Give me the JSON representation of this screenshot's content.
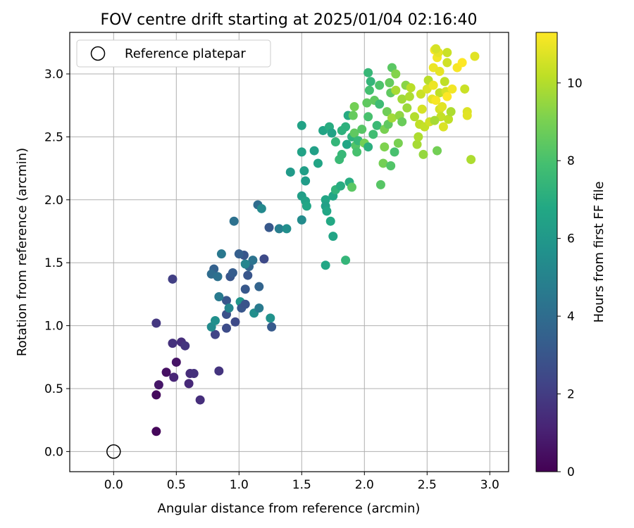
{
  "chart_data": {
    "type": "scatter",
    "title": "FOV centre drift starting at 2025/01/04 02:16:40",
    "xlabel": "Angular distance from reference (arcmin)",
    "ylabel": "Rotation from reference (arcmin)",
    "xlim": [
      -0.35,
      3.15
    ],
    "ylim": [
      -0.16,
      3.33
    ],
    "x_ticks": [
      "0.0",
      "0.5",
      "1.0",
      "1.5",
      "2.0",
      "2.5",
      "3.0"
    ],
    "y_ticks": [
      "0.0",
      "0.5",
      "1.0",
      "1.5",
      "2.0",
      "2.5",
      "3.0"
    ],
    "grid": true,
    "legend": {
      "position": "top-left",
      "entries": [
        "Reference platepar"
      ]
    },
    "reference_point": [
      0.0,
      0.0
    ],
    "colorbar": {
      "label": "Hours from first FF file",
      "min": 0,
      "max": 11.3,
      "ticks": [
        "0",
        "2",
        "4",
        "6",
        "8",
        "10"
      ],
      "colormap": "viridis"
    },
    "points": [
      [
        0.34,
        0.16,
        0.2
      ],
      [
        0.34,
        0.45,
        0.3
      ],
      [
        0.36,
        0.53,
        0.7
      ],
      [
        0.42,
        0.63,
        0.5
      ],
      [
        0.5,
        0.71,
        0.6
      ],
      [
        0.48,
        0.59,
        1.2
      ],
      [
        0.6,
        0.54,
        1.3
      ],
      [
        0.61,
        0.62,
        1.4
      ],
      [
        0.64,
        0.62,
        1.6
      ],
      [
        0.69,
        0.41,
        1.5
      ],
      [
        0.84,
        0.64,
        1.7
      ],
      [
        0.34,
        1.02,
        1.8
      ],
      [
        0.47,
        0.86,
        1.6
      ],
      [
        0.54,
        0.87,
        1.5
      ],
      [
        0.57,
        0.84,
        1.7
      ],
      [
        0.47,
        1.37,
        2.1
      ],
      [
        0.81,
        0.93,
        2.3
      ],
      [
        0.9,
        0.98,
        2.6
      ],
      [
        0.97,
        1.03,
        2.5
      ],
      [
        0.9,
        1.09,
        2.8
      ],
      [
        0.9,
        1.2,
        3.0
      ],
      [
        0.93,
        1.39,
        3.0
      ],
      [
        0.95,
        1.42,
        3.3
      ],
      [
        0.8,
        1.45,
        3.5
      ],
      [
        0.78,
        1.41,
        4.0
      ],
      [
        0.83,
        1.39,
        4.2
      ],
      [
        0.86,
        1.57,
        4.5
      ],
      [
        0.84,
        1.23,
        4.6
      ],
      [
        0.92,
        1.14,
        5.1
      ],
      [
        0.78,
        0.99,
        5.4
      ],
      [
        0.81,
        1.04,
        5.6
      ],
      [
        1.01,
        1.19,
        5.8
      ],
      [
        1.02,
        1.14,
        3.0
      ],
      [
        1.05,
        1.29,
        3.1
      ],
      [
        1.05,
        1.17,
        2.9
      ],
      [
        1.07,
        1.4,
        3.0
      ],
      [
        1.08,
        1.47,
        3.7
      ],
      [
        1.11,
        1.52,
        4.3
      ],
      [
        1.12,
        1.1,
        5.5
      ],
      [
        1.16,
        1.31,
        3.6
      ],
      [
        1.16,
        1.14,
        4.6
      ],
      [
        1.2,
        1.53,
        2.5
      ],
      [
        1.25,
        1.06,
        5.7
      ],
      [
        1.26,
        0.99,
        3.2
      ],
      [
        1.05,
        1.49,
        5.1
      ],
      [
        1.04,
        1.56,
        3.0
      ],
      [
        1.0,
        1.57,
        3.4
      ],
      [
        0.96,
        1.83,
        4.2
      ],
      [
        1.15,
        1.96,
        4.0
      ],
      [
        1.18,
        1.93,
        5.3
      ],
      [
        1.24,
        1.78,
        3.1
      ],
      [
        1.32,
        1.77,
        4.8
      ],
      [
        1.38,
        1.77,
        5.5
      ],
      [
        1.41,
        2.22,
        6.1
      ],
      [
        1.5,
        1.84,
        5.4
      ],
      [
        1.5,
        2.03,
        6.3
      ],
      [
        1.52,
        2.23,
        6.3
      ],
      [
        1.53,
        2.15,
        6.2
      ],
      [
        1.53,
        1.99,
        6.5
      ],
      [
        1.54,
        1.95,
        6.7
      ],
      [
        1.5,
        2.38,
        6.5
      ],
      [
        1.5,
        2.59,
        6.5
      ],
      [
        1.6,
        2.39,
        6.4
      ],
      [
        1.63,
        2.29,
        6.6
      ],
      [
        1.67,
        2.55,
        6.6
      ],
      [
        1.69,
        2.0,
        6.7
      ],
      [
        1.69,
        1.95,
        6.4
      ],
      [
        1.7,
        1.91,
        6.7
      ],
      [
        1.72,
        2.58,
        7.0
      ],
      [
        1.74,
        2.53,
        6.5
      ],
      [
        1.73,
        1.83,
        6.8
      ],
      [
        1.75,
        1.71,
        6.6
      ],
      [
        1.75,
        2.03,
        6.7
      ],
      [
        1.77,
        2.08,
        7.3
      ],
      [
        1.69,
        1.48,
        6.7
      ],
      [
        1.85,
        1.52,
        7.4
      ],
      [
        1.77,
        2.46,
        7.4
      ],
      [
        1.82,
        2.55,
        7.2
      ],
      [
        1.8,
        2.32,
        7.6
      ],
      [
        1.82,
        2.36,
        7.5
      ],
      [
        1.85,
        2.58,
        7.2
      ],
      [
        1.81,
        2.11,
        7.0
      ],
      [
        1.88,
        2.14,
        7.0
      ],
      [
        1.9,
        2.1,
        8.4
      ],
      [
        1.86,
        2.44,
        6.7
      ],
      [
        1.87,
        2.67,
        6.9
      ],
      [
        1.9,
        2.5,
        7.2
      ],
      [
        1.91,
        2.67,
        8.6
      ],
      [
        1.92,
        2.74,
        8.9
      ],
      [
        1.92,
        2.53,
        8.5
      ],
      [
        1.93,
        2.43,
        8.2
      ],
      [
        1.94,
        2.38,
        8.0
      ],
      [
        1.95,
        2.47,
        7.5
      ],
      [
        1.98,
        2.56,
        8.3
      ],
      [
        2.0,
        2.45,
        8.9
      ],
      [
        2.03,
        2.42,
        7.1
      ],
      [
        2.03,
        2.66,
        8.0
      ],
      [
        2.02,
        2.77,
        8.5
      ],
      [
        2.04,
        2.87,
        7.9
      ],
      [
        2.05,
        2.94,
        7.4
      ],
      [
        2.03,
        3.01,
        7.5
      ],
      [
        2.07,
        2.52,
        7.8
      ],
      [
        2.1,
        2.59,
        7.6
      ],
      [
        2.08,
        2.79,
        8.5
      ],
      [
        2.12,
        2.76,
        7.7
      ],
      [
        2.12,
        2.91,
        8.1
      ],
      [
        2.13,
        2.12,
        8.3
      ],
      [
        2.15,
        2.29,
        8.9
      ],
      [
        2.16,
        2.42,
        9.1
      ],
      [
        2.16,
        2.56,
        9.0
      ],
      [
        2.18,
        2.7,
        8.8
      ],
      [
        2.19,
        2.6,
        8.5
      ],
      [
        2.2,
        2.93,
        8.6
      ],
      [
        2.21,
        2.85,
        8.5
      ],
      [
        2.22,
        3.05,
        8.4
      ],
      [
        2.21,
        2.27,
        8.2
      ],
      [
        2.24,
        2.38,
        8.0
      ],
      [
        2.22,
        2.65,
        9.7
      ],
      [
        2.25,
        2.87,
        9.8
      ],
      [
        2.25,
        3.0,
        9.2
      ],
      [
        2.27,
        2.45,
        9.0
      ],
      [
        2.28,
        2.67,
        9.4
      ],
      [
        2.3,
        2.62,
        8.7
      ],
      [
        2.3,
        2.8,
        9.7
      ],
      [
        2.33,
        2.91,
        9.3
      ],
      [
        2.34,
        2.73,
        9.6
      ],
      [
        2.36,
        2.82,
        9.9
      ],
      [
        2.37,
        2.89,
        10.1
      ],
      [
        2.4,
        2.66,
        10.0
      ],
      [
        2.42,
        2.44,
        9.8
      ],
      [
        2.43,
        2.5,
        9.9
      ],
      [
        2.44,
        2.6,
        10.2
      ],
      [
        2.45,
        2.84,
        10.4
      ],
      [
        2.46,
        2.72,
        10.6
      ],
      [
        2.47,
        2.36,
        9.5
      ],
      [
        2.48,
        2.58,
        10.3
      ],
      [
        2.5,
        2.88,
        10.7
      ],
      [
        2.51,
        2.95,
        10.1
      ],
      [
        2.52,
        2.62,
        10.5
      ],
      [
        2.54,
        2.8,
        10.9
      ],
      [
        2.55,
        3.05,
        11.0
      ],
      [
        2.56,
        3.19,
        11.2
      ],
      [
        2.58,
        3.13,
        11.1
      ],
      [
        2.59,
        3.17,
        10.9
      ],
      [
        2.6,
        2.85,
        10.2
      ],
      [
        2.6,
        2.72,
        10.6
      ],
      [
        2.61,
        2.66,
        10.3
      ],
      [
        2.62,
        2.74,
        10.8
      ],
      [
        2.63,
        2.58,
        10.7
      ],
      [
        2.64,
        2.94,
        10.2
      ],
      [
        2.65,
        2.86,
        10.6
      ],
      [
        2.66,
        3.17,
        10.4
      ],
      [
        2.66,
        3.09,
        10.5
      ],
      [
        2.67,
        2.64,
        10.2
      ],
      [
        2.69,
        2.7,
        9.9
      ],
      [
        2.7,
        2.88,
        11.1
      ],
      [
        2.74,
        3.05,
        11.2
      ],
      [
        2.78,
        3.09,
        11.3
      ],
      [
        2.8,
        2.88,
        10.4
      ],
      [
        2.82,
        2.7,
        10.7
      ],
      [
        2.82,
        2.67,
        10.8
      ],
      [
        2.85,
        2.32,
        9.9
      ],
      [
        2.88,
        3.14,
        10.8
      ],
      [
        2.58,
        2.39,
        8.9
      ],
      [
        2.56,
        2.63,
        9.8
      ],
      [
        2.6,
        3.02,
        10.9
      ],
      [
        2.55,
        2.91,
        11.0
      ],
      [
        2.57,
        3.2,
        10.6
      ],
      [
        2.66,
        2.82,
        11.3
      ],
      [
        2.57,
        2.79,
        11.2
      ]
    ]
  }
}
